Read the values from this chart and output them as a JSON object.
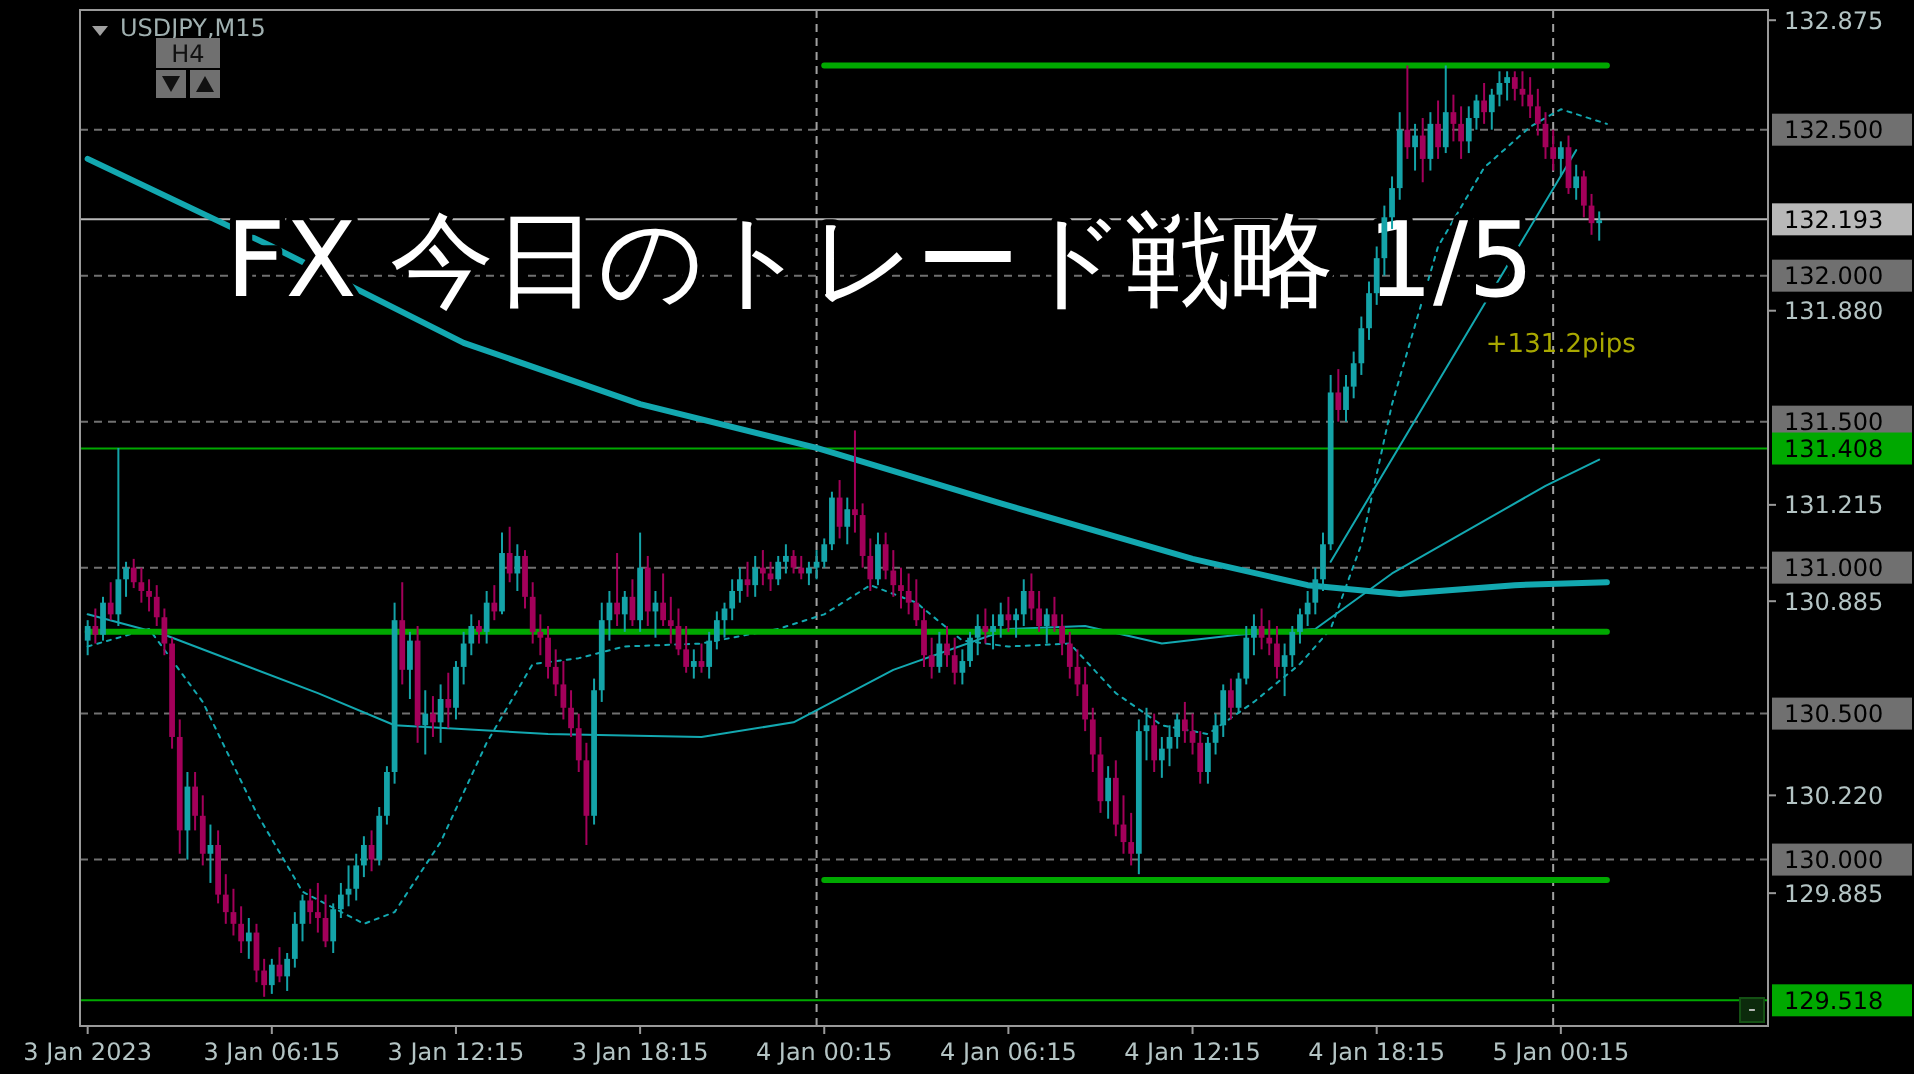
{
  "chart_data": {
    "type": "candlestick",
    "title": "FX 今日のトレード戦略 1/5",
    "annotations": [
      "USDJPY,M15",
      "H4",
      "-",
      {
        "text": "+131.2pips",
        "x": "2023-01-05T00:15",
        "y": 131.77
      }
    ],
    "xlim": [
      "2023-01-03T00:00",
      "2023-01-05T07:00"
    ],
    "ylim": [
      129.43,
      132.91
    ],
    "xticks": [
      {
        "value": "2023-01-03T00:15",
        "label": "3 Jan 2023"
      },
      {
        "value": "2023-01-03T06:15",
        "label": "3 Jan 06:15"
      },
      {
        "value": "2023-01-03T12:15",
        "label": "3 Jan 12:15"
      },
      {
        "value": "2023-01-03T18:15",
        "label": "3 Jan 18:15"
      },
      {
        "value": "2023-01-04T00:15",
        "label": "4 Jan 00:15"
      },
      {
        "value": "2023-01-04T06:15",
        "label": "4 Jan 06:15"
      },
      {
        "value": "2023-01-04T12:15",
        "label": "4 Jan 12:15"
      },
      {
        "value": "2023-01-04T18:15",
        "label": "4 Jan 18:15"
      },
      {
        "value": "2023-01-05T00:15",
        "label": "5 Jan 00:15"
      }
    ],
    "yticks": [
      {
        "value": 132.875,
        "label": "132.875"
      },
      {
        "value": 131.88,
        "label": "131.880"
      },
      {
        "value": 131.215,
        "label": "131.215"
      },
      {
        "value": 130.885,
        "label": "130.885"
      },
      {
        "value": 130.22,
        "label": "130.220"
      },
      {
        "value": 129.885,
        "label": "129.885"
      }
    ],
    "x": [
      "2023-01-03T00:15",
      "2023-01-03T00:30",
      "2023-01-03T00:45",
      "2023-01-03T01:00",
      "2023-01-03T01:15",
      "2023-01-03T01:30",
      "2023-01-03T01:45",
      "2023-01-03T02:00",
      "2023-01-03T02:15",
      "2023-01-03T02:30",
      "2023-01-03T02:45",
      "2023-01-03T03:00",
      "2023-01-03T03:15",
      "2023-01-03T03:30",
      "2023-01-03T03:45",
      "2023-01-03T04:00",
      "2023-01-03T04:15",
      "2023-01-03T04:30",
      "2023-01-03T04:45",
      "2023-01-03T05:00",
      "2023-01-03T05:15",
      "2023-01-03T05:30",
      "2023-01-03T05:45",
      "2023-01-03T06:00",
      "2023-01-03T06:15",
      "2023-01-03T06:30",
      "2023-01-03T06:45",
      "2023-01-03T07:00",
      "2023-01-03T07:15",
      "2023-01-03T07:30",
      "2023-01-03T07:45",
      "2023-01-03T08:00",
      "2023-01-03T08:15",
      "2023-01-03T08:30",
      "2023-01-03T08:45",
      "2023-01-03T09:00",
      "2023-01-03T09:15",
      "2023-01-03T09:30",
      "2023-01-03T09:45",
      "2023-01-03T10:00",
      "2023-01-03T10:15",
      "2023-01-03T10:30",
      "2023-01-03T10:45",
      "2023-01-03T11:00",
      "2023-01-03T11:15",
      "2023-01-03T11:30",
      "2023-01-03T11:45",
      "2023-01-03T12:00",
      "2023-01-03T12:15",
      "2023-01-03T12:30",
      "2023-01-03T12:45",
      "2023-01-03T13:00",
      "2023-01-03T13:15",
      "2023-01-03T13:30",
      "2023-01-03T13:45",
      "2023-01-03T14:00",
      "2023-01-03T14:15",
      "2023-01-03T14:30",
      "2023-01-03T14:45",
      "2023-01-03T15:00",
      "2023-01-03T15:15",
      "2023-01-03T15:30",
      "2023-01-03T15:45",
      "2023-01-03T16:00",
      "2023-01-03T16:15",
      "2023-01-03T16:30",
      "2023-01-03T16:45",
      "2023-01-03T17:00",
      "2023-01-03T17:15",
      "2023-01-03T17:30",
      "2023-01-03T17:45",
      "2023-01-03T18:00",
      "2023-01-03T18:15",
      "2023-01-03T18:30",
      "2023-01-03T18:45",
      "2023-01-03T19:00",
      "2023-01-03T19:15",
      "2023-01-03T19:30",
      "2023-01-03T19:45",
      "2023-01-03T20:00",
      "2023-01-03T20:15",
      "2023-01-03T20:30",
      "2023-01-03T20:45",
      "2023-01-03T21:00",
      "2023-01-03T21:15",
      "2023-01-03T21:30",
      "2023-01-03T21:45",
      "2023-01-03T22:00",
      "2023-01-03T22:15",
      "2023-01-03T22:30",
      "2023-01-03T22:45",
      "2023-01-03T23:00",
      "2023-01-03T23:15",
      "2023-01-03T23:30",
      "2023-01-03T23:45",
      "2023-01-04T00:00",
      "2023-01-04T00:15",
      "2023-01-04T00:30",
      "2023-01-04T00:45",
      "2023-01-04T01:00",
      "2023-01-04T01:15",
      "2023-01-04T01:30",
      "2023-01-04T01:45",
      "2023-01-04T02:00",
      "2023-01-04T02:15",
      "2023-01-04T02:30",
      "2023-01-04T02:45",
      "2023-01-04T03:00",
      "2023-01-04T03:15",
      "2023-01-04T03:30",
      "2023-01-04T03:45",
      "2023-01-04T04:00",
      "2023-01-04T04:15",
      "2023-01-04T04:30",
      "2023-01-04T04:45",
      "2023-01-04T05:00",
      "2023-01-04T05:15",
      "2023-01-04T05:30",
      "2023-01-04T05:45",
      "2023-01-04T06:00",
      "2023-01-04T06:15",
      "2023-01-04T06:30",
      "2023-01-04T06:45",
      "2023-01-04T07:00",
      "2023-01-04T07:15",
      "2023-01-04T07:30",
      "2023-01-04T07:45",
      "2023-01-04T08:00",
      "2023-01-04T08:15",
      "2023-01-04T08:30",
      "2023-01-04T08:45",
      "2023-01-04T09:00",
      "2023-01-04T09:15",
      "2023-01-04T09:30",
      "2023-01-04T09:45",
      "2023-01-04T10:00",
      "2023-01-04T10:15",
      "2023-01-04T10:30",
      "2023-01-04T10:45",
      "2023-01-04T11:00",
      "2023-01-04T11:15",
      "2023-01-04T11:30",
      "2023-01-04T11:45",
      "2023-01-04T12:00",
      "2023-01-04T12:15",
      "2023-01-04T12:30",
      "2023-01-04T12:45",
      "2023-01-04T13:00",
      "2023-01-04T13:15",
      "2023-01-04T13:30",
      "2023-01-04T13:45",
      "2023-01-04T14:00",
      "2023-01-04T14:15",
      "2023-01-04T14:30",
      "2023-01-04T14:45",
      "2023-01-04T15:00",
      "2023-01-04T15:15",
      "2023-01-04T15:30",
      "2023-01-04T15:45",
      "2023-01-04T16:00",
      "2023-01-04T16:15",
      "2023-01-04T16:30",
      "2023-01-04T16:45",
      "2023-01-04T17:00",
      "2023-01-04T17:15",
      "2023-01-04T17:30",
      "2023-01-04T17:45",
      "2023-01-04T18:00",
      "2023-01-04T18:15",
      "2023-01-04T18:30",
      "2023-01-04T18:45",
      "2023-01-04T19:00",
      "2023-01-04T19:15",
      "2023-01-04T19:30",
      "2023-01-04T19:45",
      "2023-01-04T20:00",
      "2023-01-04T20:15",
      "2023-01-04T20:30",
      "2023-01-04T20:45",
      "2023-01-04T21:00",
      "2023-01-04T21:15",
      "2023-01-04T21:30",
      "2023-01-04T21:45",
      "2023-01-04T22:00",
      "2023-01-04T22:15",
      "2023-01-04T22:30",
      "2023-01-04T22:45",
      "2023-01-04T23:00",
      "2023-01-04T23:15",
      "2023-01-04T23:30",
      "2023-01-04T23:45",
      "2023-01-05T00:00",
      "2023-01-05T00:15",
      "2023-01-05T00:30",
      "2023-01-05T00:45",
      "2023-01-05T01:00",
      "2023-01-05T01:15",
      "2023-01-05T01:30"
    ],
    "ohlc": [
      [
        130.75,
        130.82,
        130.7,
        130.8
      ],
      [
        130.8,
        130.86,
        130.74,
        130.77
      ],
      [
        130.77,
        130.9,
        130.75,
        130.88
      ],
      [
        130.88,
        130.95,
        130.82,
        130.84
      ],
      [
        130.84,
        131.41,
        130.8,
        130.96
      ],
      [
        130.96,
        131.02,
        130.9,
        131.0
      ],
      [
        131.0,
        131.03,
        130.93,
        130.95
      ],
      [
        130.95,
        131.0,
        130.88,
        130.92
      ],
      [
        130.92,
        130.96,
        130.85,
        130.9
      ],
      [
        130.9,
        130.94,
        130.8,
        130.83
      ],
      [
        130.83,
        130.86,
        130.7,
        130.74
      ],
      [
        130.74,
        130.76,
        130.38,
        130.42
      ],
      [
        130.42,
        130.48,
        130.02,
        130.1
      ],
      [
        130.1,
        130.3,
        130.0,
        130.25
      ],
      [
        130.25,
        130.3,
        130.1,
        130.15
      ],
      [
        130.15,
        130.22,
        129.98,
        130.02
      ],
      [
        130.02,
        130.12,
        129.92,
        130.05
      ],
      [
        130.05,
        130.1,
        129.85,
        129.88
      ],
      [
        129.88,
        129.95,
        129.78,
        129.82
      ],
      [
        129.82,
        129.9,
        129.74,
        129.78
      ],
      [
        129.78,
        129.84,
        129.68,
        129.72
      ],
      [
        129.72,
        129.8,
        129.66,
        129.75
      ],
      [
        129.75,
        129.78,
        129.58,
        129.62
      ],
      [
        129.62,
        129.66,
        129.53,
        129.57
      ],
      [
        129.57,
        129.66,
        129.54,
        129.64
      ],
      [
        129.64,
        129.7,
        129.58,
        129.6
      ],
      [
        129.6,
        129.68,
        129.55,
        129.66
      ],
      [
        129.66,
        129.82,
        129.63,
        129.78
      ],
      [
        129.78,
        129.88,
        129.72,
        129.86
      ],
      [
        129.86,
        129.9,
        129.78,
        129.82
      ],
      [
        129.82,
        129.92,
        129.75,
        129.8
      ],
      [
        129.8,
        129.88,
        129.7,
        129.72
      ],
      [
        129.72,
        129.85,
        129.68,
        129.83
      ],
      [
        129.83,
        129.92,
        129.8,
        129.88
      ],
      [
        129.88,
        129.98,
        129.84,
        129.9
      ],
      [
        129.9,
        130.02,
        129.86,
        129.98
      ],
      [
        129.98,
        130.08,
        129.94,
        130.05
      ],
      [
        130.05,
        130.1,
        129.96,
        130.0
      ],
      [
        130.0,
        130.18,
        129.98,
        130.15
      ],
      [
        130.15,
        130.32,
        130.12,
        130.3
      ],
      [
        130.3,
        130.88,
        130.26,
        130.82
      ],
      [
        130.82,
        130.95,
        130.6,
        130.65
      ],
      [
        130.65,
        130.78,
        130.55,
        130.75
      ],
      [
        130.75,
        130.8,
        130.4,
        130.46
      ],
      [
        130.46,
        130.58,
        130.36,
        130.5
      ],
      [
        130.5,
        130.56,
        130.42,
        130.47
      ],
      [
        130.47,
        130.6,
        130.4,
        130.55
      ],
      [
        130.55,
        130.64,
        130.45,
        130.52
      ],
      [
        130.52,
        130.68,
        130.48,
        130.66
      ],
      [
        130.66,
        130.78,
        130.6,
        130.74
      ],
      [
        130.74,
        130.84,
        130.7,
        130.8
      ],
      [
        130.8,
        130.82,
        130.74,
        130.78
      ],
      [
        130.78,
        130.92,
        130.74,
        130.88
      ],
      [
        130.88,
        130.94,
        130.82,
        130.85
      ],
      [
        130.85,
        131.12,
        130.84,
        131.05
      ],
      [
        131.05,
        131.14,
        130.95,
        130.98
      ],
      [
        130.98,
        131.08,
        130.92,
        131.04
      ],
      [
        131.04,
        131.06,
        130.86,
        130.9
      ],
      [
        130.9,
        130.95,
        130.74,
        130.78
      ],
      [
        130.78,
        130.84,
        130.7,
        130.76
      ],
      [
        130.76,
        130.8,
        130.62,
        130.66
      ],
      [
        130.66,
        130.72,
        130.56,
        130.6
      ],
      [
        130.6,
        130.68,
        130.48,
        130.52
      ],
      [
        130.52,
        130.58,
        130.42,
        130.45
      ],
      [
        130.45,
        130.5,
        130.3,
        130.34
      ],
      [
        130.34,
        130.4,
        130.05,
        130.15
      ],
      [
        130.15,
        130.62,
        130.12,
        130.58
      ],
      [
        130.58,
        130.88,
        130.54,
        130.82
      ],
      [
        130.82,
        130.92,
        130.75,
        130.88
      ],
      [
        130.88,
        131.05,
        130.8,
        130.84
      ],
      [
        130.84,
        130.92,
        130.78,
        130.9
      ],
      [
        130.9,
        130.96,
        130.8,
        130.82
      ],
      [
        130.82,
        131.12,
        130.78,
        131.0
      ],
      [
        131.0,
        131.04,
        130.8,
        130.85
      ],
      [
        130.85,
        130.92,
        130.76,
        130.88
      ],
      [
        130.88,
        130.98,
        130.8,
        130.82
      ],
      [
        130.82,
        130.9,
        130.74,
        130.8
      ],
      [
        130.8,
        130.86,
        130.7,
        130.72
      ],
      [
        130.72,
        130.8,
        130.64,
        130.66
      ],
      [
        130.66,
        130.72,
        130.62,
        130.68
      ],
      [
        130.68,
        130.74,
        130.64,
        130.66
      ],
      [
        130.66,
        130.78,
        130.62,
        130.75
      ],
      [
        130.75,
        130.85,
        130.72,
        130.82
      ],
      [
        130.82,
        130.88,
        130.76,
        130.86
      ],
      [
        130.86,
        130.96,
        130.82,
        130.92
      ],
      [
        130.92,
        131.0,
        130.88,
        130.96
      ],
      [
        130.96,
        131.02,
        130.9,
        130.94
      ],
      [
        130.94,
        131.04,
        130.9,
        131.0
      ],
      [
        131.0,
        131.06,
        130.94,
        130.98
      ],
      [
        130.98,
        131.02,
        130.92,
        130.96
      ],
      [
        130.96,
        131.04,
        130.94,
        131.02
      ],
      [
        131.02,
        131.08,
        130.98,
        131.04
      ],
      [
        131.04,
        131.06,
        130.98,
        131.0
      ],
      [
        131.0,
        131.04,
        130.96,
        130.98
      ],
      [
        130.98,
        131.02,
        130.94,
        131.0
      ],
      [
        131.0,
        131.06,
        130.96,
        131.02
      ],
      [
        131.02,
        131.1,
        131.0,
        131.08
      ],
      [
        131.08,
        131.26,
        131.06,
        131.24
      ],
      [
        131.24,
        131.3,
        131.1,
        131.14
      ],
      [
        131.14,
        131.24,
        131.08,
        131.2
      ],
      [
        131.2,
        131.47,
        131.12,
        131.18
      ],
      [
        131.18,
        131.22,
        131.0,
        131.04
      ],
      [
        131.04,
        131.1,
        130.92,
        130.96
      ],
      [
        130.96,
        131.12,
        130.94,
        131.08
      ],
      [
        131.08,
        131.12,
        130.96,
        130.99
      ],
      [
        130.99,
        131.06,
        130.9,
        130.94
      ],
      [
        130.94,
        131.0,
        130.86,
        130.92
      ],
      [
        130.92,
        130.98,
        130.84,
        130.88
      ],
      [
        130.88,
        130.96,
        130.8,
        130.82
      ],
      [
        130.82,
        130.86,
        130.66,
        130.7
      ],
      [
        130.7,
        130.76,
        130.62,
        130.66
      ],
      [
        130.66,
        130.78,
        130.64,
        130.74
      ],
      [
        130.74,
        130.8,
        130.66,
        130.7
      ],
      [
        130.7,
        130.76,
        130.6,
        130.64
      ],
      [
        130.64,
        130.72,
        130.6,
        130.68
      ],
      [
        130.68,
        130.78,
        130.66,
        130.76
      ],
      [
        130.76,
        130.84,
        130.7,
        130.8
      ],
      [
        130.8,
        130.86,
        130.74,
        130.78
      ],
      [
        130.78,
        130.84,
        130.72,
        130.8
      ],
      [
        130.8,
        130.88,
        130.76,
        130.84
      ],
      [
        130.84,
        130.9,
        130.78,
        130.82
      ],
      [
        130.82,
        130.86,
        130.76,
        130.84
      ],
      [
        130.84,
        130.96,
        130.8,
        130.92
      ],
      [
        130.92,
        130.98,
        130.82,
        130.86
      ],
      [
        130.86,
        130.92,
        130.78,
        130.8
      ],
      [
        130.8,
        130.86,
        130.74,
        130.84
      ],
      [
        130.84,
        130.9,
        130.78,
        130.8
      ],
      [
        130.8,
        130.84,
        130.7,
        130.74
      ],
      [
        130.74,
        130.78,
        130.62,
        130.66
      ],
      [
        130.66,
        130.72,
        130.56,
        130.6
      ],
      [
        130.6,
        130.66,
        130.44,
        130.48
      ],
      [
        130.48,
        130.52,
        130.3,
        130.36
      ],
      [
        130.36,
        130.42,
        130.16,
        130.2
      ],
      [
        130.2,
        130.32,
        130.14,
        130.28
      ],
      [
        130.28,
        130.34,
        130.08,
        130.12
      ],
      [
        130.12,
        130.22,
        130.02,
        130.06
      ],
      [
        130.06,
        130.16,
        129.98,
        130.02
      ],
      [
        130.02,
        130.48,
        129.95,
        130.44
      ],
      [
        130.44,
        130.52,
        130.34,
        130.46
      ],
      [
        130.46,
        130.5,
        130.3,
        130.34
      ],
      [
        130.34,
        130.42,
        130.28,
        130.38
      ],
      [
        130.38,
        130.46,
        130.32,
        130.42
      ],
      [
        130.42,
        130.5,
        130.38,
        130.48
      ],
      [
        130.48,
        130.54,
        130.4,
        130.44
      ],
      [
        130.44,
        130.5,
        130.36,
        130.4
      ],
      [
        130.4,
        130.44,
        130.26,
        130.3
      ],
      [
        130.3,
        130.42,
        130.26,
        130.4
      ],
      [
        130.4,
        130.5,
        130.36,
        130.46
      ],
      [
        130.46,
        130.6,
        130.42,
        130.58
      ],
      [
        130.58,
        130.62,
        130.48,
        130.52
      ],
      [
        130.52,
        130.64,
        130.5,
        130.62
      ],
      [
        130.62,
        130.8,
        130.6,
        130.76
      ],
      [
        130.76,
        130.84,
        130.7,
        130.8
      ],
      [
        130.8,
        130.86,
        130.72,
        130.76
      ],
      [
        130.76,
        130.82,
        130.7,
        130.74
      ],
      [
        130.74,
        130.8,
        130.62,
        130.66
      ],
      [
        130.66,
        130.74,
        130.56,
        130.7
      ],
      [
        130.7,
        130.8,
        130.66,
        130.78
      ],
      [
        130.78,
        130.86,
        130.74,
        130.84
      ],
      [
        130.84,
        130.92,
        130.8,
        130.88
      ],
      [
        130.88,
        131.0,
        130.84,
        130.96
      ],
      [
        130.96,
        131.12,
        130.92,
        131.08
      ],
      [
        131.08,
        131.66,
        131.06,
        131.6
      ],
      [
        131.6,
        131.68,
        131.5,
        131.54
      ],
      [
        131.54,
        131.66,
        131.5,
        131.62
      ],
      [
        131.62,
        131.74,
        131.58,
        131.7
      ],
      [
        131.7,
        131.86,
        131.66,
        131.82
      ],
      [
        131.82,
        131.98,
        131.78,
        131.94
      ],
      [
        131.94,
        132.1,
        131.9,
        132.06
      ],
      [
        132.06,
        132.24,
        132.0,
        132.2
      ],
      [
        132.2,
        132.34,
        132.16,
        132.3
      ],
      [
        132.3,
        132.56,
        132.26,
        132.5
      ],
      [
        132.5,
        132.72,
        132.4,
        132.44
      ],
      [
        132.44,
        132.52,
        132.36,
        132.48
      ],
      [
        132.48,
        132.54,
        132.32,
        132.4
      ],
      [
        132.4,
        132.56,
        132.36,
        132.52
      ],
      [
        132.52,
        132.6,
        132.4,
        132.44
      ],
      [
        132.44,
        132.72,
        132.42,
        132.56
      ],
      [
        132.56,
        132.62,
        132.46,
        132.52
      ],
      [
        132.52,
        132.58,
        132.4,
        132.46
      ],
      [
        132.46,
        132.58,
        132.42,
        132.54
      ],
      [
        132.54,
        132.62,
        132.5,
        132.6
      ],
      [
        132.6,
        132.66,
        132.52,
        132.56
      ],
      [
        132.56,
        132.64,
        132.5,
        132.62
      ],
      [
        132.62,
        132.7,
        132.58,
        132.66
      ],
      [
        132.66,
        132.7,
        132.6,
        132.68
      ],
      [
        132.68,
        132.7,
        132.6,
        132.64
      ],
      [
        132.64,
        132.7,
        132.58,
        132.62
      ],
      [
        132.62,
        132.68,
        132.54,
        132.58
      ],
      [
        132.58,
        132.64,
        132.48,
        132.52
      ],
      [
        132.52,
        132.56,
        132.4,
        132.44
      ],
      [
        132.44,
        132.5,
        132.36,
        132.4
      ],
      [
        132.4,
        132.46,
        132.34,
        132.44
      ],
      [
        132.44,
        132.48,
        132.28,
        132.3
      ],
      [
        132.3,
        132.38,
        132.26,
        132.34
      ],
      [
        132.34,
        132.36,
        132.2,
        132.24
      ],
      [
        132.24,
        132.28,
        132.14,
        132.18
      ],
      [
        132.18,
        132.22,
        132.12,
        132.19
      ]
    ],
    "series": [
      {
        "type": "line",
        "color": "#13a8b0",
        "x": [
          "2023-01-03T00:15",
          "2023-01-03T06:15",
          "2023-01-03T12:30",
          "2023-01-03T18:15",
          "2023-01-04T00:00",
          "2023-01-04T06:00",
          "2023-01-04T12:15",
          "2023-01-04T16:00",
          "2023-01-04T19:00",
          "2023-01-04T22:45",
          "2023-01-05T01:45"
        ],
        "values": [
          132.4,
          132.1,
          131.77,
          131.56,
          131.41,
          131.22,
          131.03,
          130.94,
          130.91,
          130.94,
          130.95
        ]
      },
      {
        "type": "line",
        "color": "#13a8b0",
        "x": [
          "2023-01-03T00:15",
          "2023-01-03T02:45",
          "2023-01-03T07:45",
          "2023-01-03T10:15",
          "2023-01-03T15:15",
          "2023-01-03T20:15",
          "2023-01-03T23:15",
          "2023-01-04T02:30",
          "2023-01-04T06:15",
          "2023-01-04T08:45",
          "2023-01-04T11:15",
          "2023-01-04T13:45",
          "2023-01-04T16:15",
          "2023-01-04T18:45",
          "2023-01-04T21:15",
          "2023-01-04T23:45",
          "2023-01-05T01:30"
        ],
        "values": [
          130.84,
          130.77,
          130.57,
          130.46,
          130.43,
          130.42,
          130.47,
          130.65,
          130.79,
          130.8,
          130.74,
          130.77,
          130.79,
          130.98,
          131.13,
          131.28,
          131.37
        ]
      },
      {
        "type": "line",
        "color": "#13a8b0",
        "line_style": "dotted",
        "x": [
          "2023-01-03T00:15",
          "2023-01-03T02:15",
          "2023-01-03T04:00",
          "2023-01-03T05:45",
          "2023-01-03T07:15",
          "2023-01-03T09:15",
          "2023-01-03T10:15",
          "2023-01-03T11:45",
          "2023-01-03T13:15",
          "2023-01-03T14:45",
          "2023-01-03T16:15",
          "2023-01-03T17:45",
          "2023-01-03T20:15",
          "2023-01-03T22:45",
          "2023-01-04T00:15",
          "2023-01-04T01:45",
          "2023-01-04T03:15",
          "2023-01-04T04:45",
          "2023-01-04T06:15",
          "2023-01-04T08:15",
          "2023-01-04T09:45",
          "2023-01-04T11:15",
          "2023-01-04T12:45",
          "2023-01-04T14:15",
          "2023-01-04T15:45",
          "2023-01-04T16:45",
          "2023-01-04T17:45",
          "2023-01-04T18:45",
          "2023-01-04T20:15",
          "2023-01-04T21:45",
          "2023-01-04T23:15",
          "2023-01-05T00:15",
          "2023-01-05T01:45"
        ],
        "values": [
          130.73,
          130.79,
          130.54,
          130.16,
          129.89,
          129.78,
          129.82,
          130.06,
          130.4,
          130.67,
          130.69,
          130.73,
          130.74,
          130.79,
          130.84,
          130.94,
          130.88,
          130.75,
          130.73,
          130.74,
          130.57,
          130.46,
          130.43,
          130.54,
          130.67,
          130.79,
          131.08,
          131.56,
          132.1,
          132.37,
          132.51,
          132.57,
          132.52
        ]
      },
      {
        "type": "line",
        "color": "#13a8b0",
        "x": [
          "2023-01-04T16:45",
          "2023-01-05T00:45"
        ],
        "values": [
          131.02,
          132.43
        ]
      },
      {
        "type": "line",
        "color": "#00a800",
        "x": [
          "2023-01-03T00:15",
          "2023-01-05T01:45"
        ],
        "values": [
          130.78,
          130.78
        ]
      },
      {
        "type": "line",
        "color": "#00a800",
        "x": [
          "2023-01-04T00:15",
          "2023-01-05T01:45"
        ],
        "values": [
          132.72,
          132.72
        ]
      },
      {
        "type": "line",
        "color": "#00a800",
        "x": [
          "2023-01-04T00:15",
          "2023-01-05T01:45"
        ],
        "values": [
          129.93,
          129.93
        ]
      }
    ],
    "ref_lines": [
      {
        "axis": "y",
        "value": 132.5,
        "label": "132.500",
        "color": "#707070",
        "line_style": "dashed"
      },
      {
        "axis": "y",
        "value": 132.0,
        "label": "132.000",
        "color": "#707070",
        "line_style": "dashed"
      },
      {
        "axis": "y",
        "value": 131.5,
        "label": "131.500",
        "color": "#707070",
        "line_style": "dashed"
      },
      {
        "axis": "y",
        "value": 131.0,
        "label": "131.000",
        "color": "#707070",
        "line_style": "dashed"
      },
      {
        "axis": "y",
        "value": 130.5,
        "label": "130.500",
        "color": "#707070",
        "line_style": "dashed"
      },
      {
        "axis": "y",
        "value": 130.0,
        "label": "130.000",
        "color": "#707070",
        "line_style": "dashed"
      },
      {
        "axis": "y",
        "value": 132.193,
        "label": "132.193",
        "color": "#b8b8b8",
        "line_style": "solid"
      },
      {
        "axis": "y",
        "value": 131.408,
        "label": "131.408",
        "color": "#00a800",
        "line_style": "solid"
      },
      {
        "axis": "y",
        "value": 129.518,
        "label": "129.518",
        "color": "#00a800",
        "line_style": "solid"
      },
      {
        "axis": "x",
        "value": "2023-01-04T00:00",
        "color": "#a0a0a0",
        "line_style": "dashed"
      },
      {
        "axis": "x",
        "value": "2023-01-05T00:00",
        "color": "#a0a0a0",
        "line_style": "dashed"
      }
    ]
  }
}
